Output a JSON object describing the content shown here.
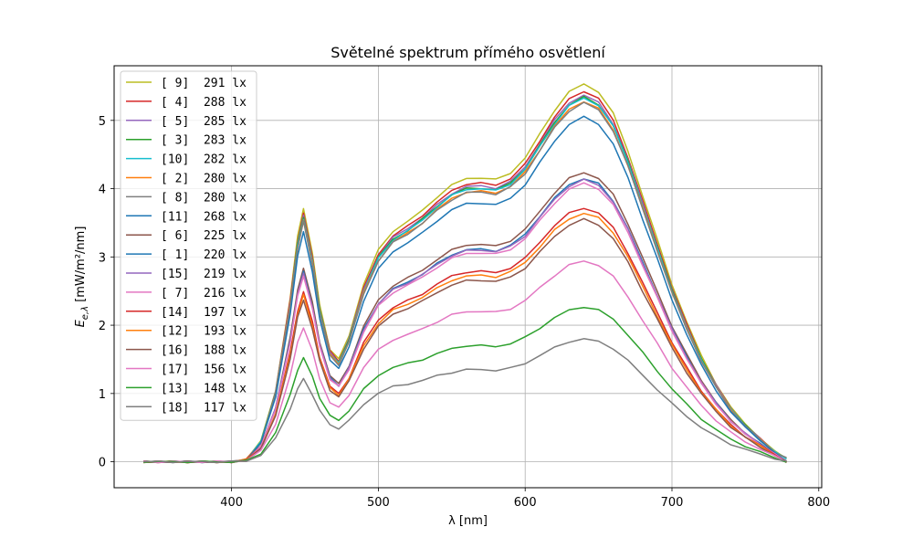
{
  "chart_data": {
    "type": "line",
    "title": "Světelné spektrum přímého osvětlení",
    "xlabel": "λ [nm]",
    "ylabel": "E_e,λ [mW/m²/nm]",
    "xlim": [
      320,
      802
    ],
    "ylim": [
      -0.38,
      5.8
    ],
    "xticks": [
      400,
      500,
      600,
      700,
      800
    ],
    "yticks": [
      0,
      1,
      2,
      3,
      4,
      5
    ],
    "grid": true,
    "legend_position": "upper-left",
    "x": [
      340,
      350,
      360,
      370,
      380,
      390,
      400,
      410,
      420,
      430,
      440,
      445,
      449,
      455,
      460,
      467,
      473,
      480,
      490,
      500,
      510,
      520,
      530,
      540,
      550,
      560,
      570,
      580,
      590,
      600,
      610,
      620,
      630,
      640,
      650,
      660,
      670,
      680,
      690,
      700,
      710,
      720,
      730,
      740,
      750,
      760,
      770,
      778
    ],
    "series": [
      {
        "label": "[ 9]  291 lx",
        "color": "#bcbd22",
        "values": [
          0.0,
          0.0,
          0.0,
          0.0,
          0.0,
          0.0,
          0.0,
          0.03,
          0.3,
          1.05,
          2.4,
          3.3,
          3.72,
          3.05,
          2.3,
          1.65,
          1.5,
          1.85,
          2.6,
          3.1,
          3.38,
          3.52,
          3.68,
          3.88,
          4.05,
          4.15,
          4.16,
          4.13,
          4.23,
          4.45,
          4.8,
          5.15,
          5.42,
          5.53,
          5.42,
          5.1,
          4.55,
          3.9,
          3.25,
          2.6,
          2.05,
          1.55,
          1.15,
          0.8,
          0.55,
          0.35,
          0.15,
          0.05
        ]
      },
      {
        "label": "[ 4]  288 lx",
        "color": "#d62728",
        "values": [
          0.0,
          0.0,
          0.0,
          0.0,
          0.0,
          0.0,
          0.0,
          0.03,
          0.29,
          1.03,
          2.36,
          3.23,
          3.64,
          2.99,
          2.25,
          1.62,
          1.47,
          1.81,
          2.54,
          3.04,
          3.31,
          3.45,
          3.61,
          3.8,
          3.97,
          4.07,
          4.08,
          4.05,
          4.15,
          4.36,
          4.7,
          5.05,
          5.31,
          5.43,
          5.32,
          5.0,
          4.46,
          3.82,
          3.19,
          2.55,
          2.01,
          1.52,
          1.13,
          0.78,
          0.54,
          0.34,
          0.14,
          0.0
        ]
      },
      {
        "label": "[ 5]  285 lx",
        "color": "#9467bd",
        "values": [
          0.0,
          0.0,
          0.0,
          0.0,
          0.0,
          0.0,
          0.0,
          0.03,
          0.29,
          1.02,
          2.33,
          3.2,
          3.6,
          2.96,
          2.23,
          1.6,
          1.46,
          1.8,
          2.52,
          3.01,
          3.28,
          3.42,
          3.57,
          3.76,
          3.93,
          4.03,
          4.04,
          4.01,
          4.1,
          4.32,
          4.66,
          5.0,
          5.26,
          5.37,
          5.26,
          4.95,
          4.42,
          3.79,
          3.15,
          2.52,
          1.99,
          1.5,
          1.12,
          0.78,
          0.53,
          0.34,
          0.14,
          0.0
        ]
      },
      {
        "label": "[ 3]  283 lx",
        "color": "#2ca02c",
        "values": [
          0.0,
          0.0,
          0.0,
          0.0,
          0.0,
          0.0,
          0.0,
          0.03,
          0.29,
          1.01,
          2.3,
          3.18,
          3.58,
          2.94,
          2.22,
          1.59,
          1.45,
          1.78,
          2.5,
          2.99,
          3.26,
          3.39,
          3.55,
          3.74,
          3.91,
          4.0,
          4.01,
          3.98,
          4.08,
          4.3,
          4.63,
          4.97,
          5.23,
          5.34,
          5.23,
          4.92,
          4.4,
          3.76,
          3.14,
          2.51,
          1.98,
          1.5,
          1.11,
          0.77,
          0.53,
          0.34,
          0.14,
          0.05
        ]
      },
      {
        "label": "[10]  282 lx",
        "color": "#17becf",
        "values": [
          0.0,
          0.0,
          0.0,
          0.0,
          0.0,
          0.0,
          0.0,
          0.03,
          0.29,
          1.0,
          2.28,
          3.16,
          3.56,
          2.93,
          2.21,
          1.58,
          1.44,
          1.77,
          2.49,
          2.98,
          3.25,
          3.38,
          3.54,
          3.73,
          3.9,
          3.99,
          4.0,
          3.97,
          4.07,
          4.28,
          4.62,
          4.95,
          5.21,
          5.33,
          5.22,
          4.91,
          4.39,
          3.75,
          3.13,
          2.5,
          1.97,
          1.49,
          1.11,
          0.77,
          0.53,
          0.34,
          0.14,
          0.05
        ]
      },
      {
        "label": "[ 2]  280 lx",
        "color": "#ff7f0e",
        "values": [
          0.0,
          0.0,
          0.0,
          0.0,
          0.0,
          0.0,
          0.0,
          0.03,
          0.28,
          0.99,
          2.27,
          3.13,
          3.53,
          2.9,
          2.19,
          1.57,
          1.43,
          1.76,
          2.47,
          2.95,
          3.22,
          3.35,
          3.5,
          3.69,
          3.86,
          3.95,
          3.96,
          3.94,
          4.03,
          4.24,
          4.57,
          4.91,
          5.16,
          5.28,
          5.17,
          4.86,
          4.34,
          3.72,
          3.1,
          2.48,
          1.95,
          1.48,
          1.1,
          0.76,
          0.52,
          0.33,
          0.14,
          0.0
        ]
      },
      {
        "label": "[ 8]  280 lx",
        "color": "#7f7f7f",
        "values": [
          0.0,
          0.0,
          0.0,
          0.0,
          0.0,
          0.0,
          0.0,
          0.03,
          0.28,
          0.99,
          2.26,
          3.12,
          3.52,
          2.89,
          2.18,
          1.56,
          1.42,
          1.75,
          2.46,
          2.94,
          3.21,
          3.34,
          3.49,
          3.68,
          3.84,
          3.94,
          3.95,
          3.92,
          4.02,
          4.22,
          4.56,
          4.89,
          5.14,
          5.26,
          5.15,
          4.85,
          4.33,
          3.71,
          3.09,
          2.47,
          1.95,
          1.47,
          1.09,
          0.76,
          0.52,
          0.33,
          0.14,
          0.05
        ]
      },
      {
        "label": "[11]  268 lx",
        "color": "#1f77b4",
        "values": [
          0.0,
          0.0,
          0.0,
          0.0,
          0.0,
          0.0,
          0.0,
          0.03,
          0.27,
          0.95,
          2.17,
          3.0,
          3.38,
          2.78,
          2.09,
          1.5,
          1.36,
          1.68,
          2.36,
          2.82,
          3.08,
          3.21,
          3.35,
          3.53,
          3.69,
          3.78,
          3.79,
          3.76,
          3.86,
          4.06,
          4.38,
          4.7,
          4.94,
          5.05,
          4.95,
          4.65,
          4.16,
          3.56,
          2.97,
          2.37,
          1.87,
          1.41,
          1.05,
          0.73,
          0.5,
          0.32,
          0.13,
          0.0
        ]
      },
      {
        "label": "[ 6]  225 lx",
        "color": "#8c564b",
        "values": [
          0.0,
          0.0,
          0.0,
          0.0,
          0.0,
          0.0,
          0.0,
          0.02,
          0.23,
          0.8,
          1.82,
          2.52,
          2.84,
          2.33,
          1.76,
          1.26,
          1.14,
          1.41,
          1.98,
          2.37,
          2.58,
          2.69,
          2.81,
          2.96,
          3.1,
          3.18,
          3.18,
          3.16,
          3.24,
          3.4,
          3.67,
          3.94,
          4.15,
          4.24,
          4.15,
          3.91,
          3.49,
          2.99,
          2.49,
          1.99,
          1.57,
          1.19,
          0.88,
          0.61,
          0.42,
          0.27,
          0.11,
          0.0
        ]
      },
      {
        "label": "[ 1]  220 lx",
        "color": "#1f77b4",
        "values": [
          0.0,
          0.0,
          0.0,
          0.0,
          0.0,
          0.0,
          0.0,
          0.02,
          0.22,
          0.78,
          1.78,
          2.46,
          2.78,
          2.28,
          1.72,
          1.23,
          1.12,
          1.38,
          1.94,
          2.32,
          2.53,
          2.63,
          2.75,
          2.9,
          3.03,
          3.11,
          3.11,
          3.09,
          3.17,
          3.33,
          3.6,
          3.86,
          4.06,
          4.15,
          4.07,
          3.82,
          3.42,
          2.92,
          2.44,
          1.95,
          1.54,
          1.16,
          0.86,
          0.6,
          0.41,
          0.26,
          0.11,
          0.0
        ]
      },
      {
        "label": "[15]  219 lx",
        "color": "#9467bd",
        "values": [
          0.0,
          0.0,
          0.0,
          0.0,
          0.0,
          0.0,
          0.0,
          0.02,
          0.22,
          0.78,
          1.77,
          2.45,
          2.76,
          2.27,
          1.71,
          1.23,
          1.11,
          1.37,
          1.93,
          2.31,
          2.52,
          2.62,
          2.74,
          2.89,
          3.02,
          3.09,
          3.1,
          3.08,
          3.15,
          3.31,
          3.58,
          3.84,
          4.04,
          4.13,
          4.05,
          3.81,
          3.4,
          2.91,
          2.43,
          1.94,
          1.53,
          1.16,
          0.86,
          0.6,
          0.41,
          0.26,
          0.11,
          0.0
        ]
      },
      {
        "label": "[ 7]  216 lx",
        "color": "#e377c2",
        "values": [
          0.0,
          0.0,
          0.0,
          0.0,
          0.0,
          0.0,
          0.0,
          0.02,
          0.22,
          0.77,
          1.75,
          2.42,
          2.73,
          2.24,
          1.69,
          1.21,
          1.1,
          1.35,
          1.9,
          2.28,
          2.48,
          2.59,
          2.7,
          2.85,
          2.98,
          3.05,
          3.06,
          3.04,
          3.11,
          3.27,
          3.53,
          3.79,
          3.99,
          4.08,
          4.0,
          3.76,
          3.36,
          2.88,
          2.4,
          1.92,
          1.51,
          1.14,
          0.85,
          0.59,
          0.4,
          0.26,
          0.11,
          0.0
        ]
      },
      {
        "label": "[14]  197 lx",
        "color": "#d62728",
        "values": [
          0.0,
          0.0,
          0.0,
          0.0,
          0.0,
          0.0,
          0.0,
          0.02,
          0.2,
          0.7,
          1.6,
          2.21,
          2.49,
          2.05,
          1.54,
          1.1,
          1.0,
          1.23,
          1.74,
          2.08,
          2.26,
          2.36,
          2.46,
          2.6,
          2.72,
          2.78,
          2.79,
          2.77,
          2.84,
          2.98,
          3.22,
          3.46,
          3.64,
          3.72,
          3.64,
          3.43,
          3.06,
          2.62,
          2.19,
          1.75,
          1.38,
          1.04,
          0.77,
          0.54,
          0.37,
          0.24,
          0.1,
          0.0
        ]
      },
      {
        "label": "[12]  193 lx",
        "color": "#ff7f0e",
        "values": [
          0.0,
          0.0,
          0.0,
          0.0,
          0.0,
          0.0,
          0.0,
          0.02,
          0.2,
          0.69,
          1.56,
          2.16,
          2.44,
          2.0,
          1.51,
          1.08,
          0.98,
          1.21,
          1.7,
          2.03,
          2.22,
          2.31,
          2.41,
          2.54,
          2.66,
          2.72,
          2.73,
          2.71,
          2.78,
          2.92,
          3.15,
          3.39,
          3.56,
          3.64,
          3.57,
          3.36,
          3.0,
          2.57,
          2.14,
          1.71,
          1.35,
          1.02,
          0.76,
          0.53,
          0.36,
          0.23,
          0.1,
          0.0
        ]
      },
      {
        "label": "[16]  188 lx",
        "color": "#8c564b",
        "values": [
          0.0,
          0.0,
          0.0,
          0.0,
          0.0,
          0.0,
          0.0,
          0.02,
          0.19,
          0.67,
          1.52,
          2.11,
          2.37,
          1.95,
          1.47,
          1.05,
          0.95,
          1.18,
          1.66,
          1.98,
          2.16,
          2.25,
          2.35,
          2.48,
          2.59,
          2.65,
          2.66,
          2.64,
          2.7,
          2.84,
          3.07,
          3.3,
          3.47,
          3.55,
          3.47,
          3.27,
          2.92,
          2.5,
          2.09,
          1.67,
          1.31,
          0.99,
          0.74,
          0.51,
          0.35,
          0.22,
          0.09,
          0.0
        ]
      },
      {
        "label": "[17]  156 lx",
        "color": "#e377c2",
        "values": [
          0.0,
          0.0,
          0.0,
          0.0,
          0.0,
          0.0,
          0.0,
          0.02,
          0.16,
          0.56,
          1.26,
          1.75,
          1.97,
          1.62,
          1.22,
          0.87,
          0.79,
          0.98,
          1.38,
          1.64,
          1.79,
          1.86,
          1.95,
          2.05,
          2.15,
          2.2,
          2.2,
          2.19,
          2.24,
          2.36,
          2.55,
          2.73,
          2.88,
          2.94,
          2.88,
          2.71,
          2.42,
          2.07,
          1.73,
          1.38,
          1.09,
          0.82,
          0.61,
          0.43,
          0.29,
          0.19,
          0.08,
          0.0
        ]
      },
      {
        "label": "[13]  148 lx",
        "color": "#2ca02c",
        "values": [
          0.0,
          0.0,
          0.0,
          0.0,
          0.0,
          0.0,
          0.0,
          0.01,
          0.12,
          0.43,
          0.98,
          1.35,
          1.52,
          1.25,
          0.94,
          0.67,
          0.61,
          0.75,
          1.06,
          1.27,
          1.38,
          1.44,
          1.5,
          1.58,
          1.66,
          1.7,
          1.7,
          1.69,
          1.73,
          1.82,
          1.96,
          2.11,
          2.22,
          2.27,
          2.22,
          2.09,
          1.86,
          1.6,
          1.33,
          1.07,
          0.84,
          0.63,
          0.47,
          0.33,
          0.23,
          0.14,
          0.06,
          0.0
        ]
      },
      {
        "label": "[18]  117 lx",
        "color": "#7f7f7f",
        "values": [
          0.0,
          0.0,
          0.0,
          0.0,
          0.0,
          0.0,
          0.0,
          0.01,
          0.1,
          0.34,
          0.78,
          1.07,
          1.21,
          0.99,
          0.75,
          0.54,
          0.49,
          0.6,
          0.84,
          1.01,
          1.1,
          1.14,
          1.19,
          1.26,
          1.31,
          1.35,
          1.35,
          1.34,
          1.37,
          1.44,
          1.56,
          1.67,
          1.76,
          1.8,
          1.76,
          1.66,
          1.48,
          1.27,
          1.06,
          0.85,
          0.67,
          0.5,
          0.37,
          0.26,
          0.18,
          0.11,
          0.05,
          0.0
        ]
      }
    ]
  }
}
